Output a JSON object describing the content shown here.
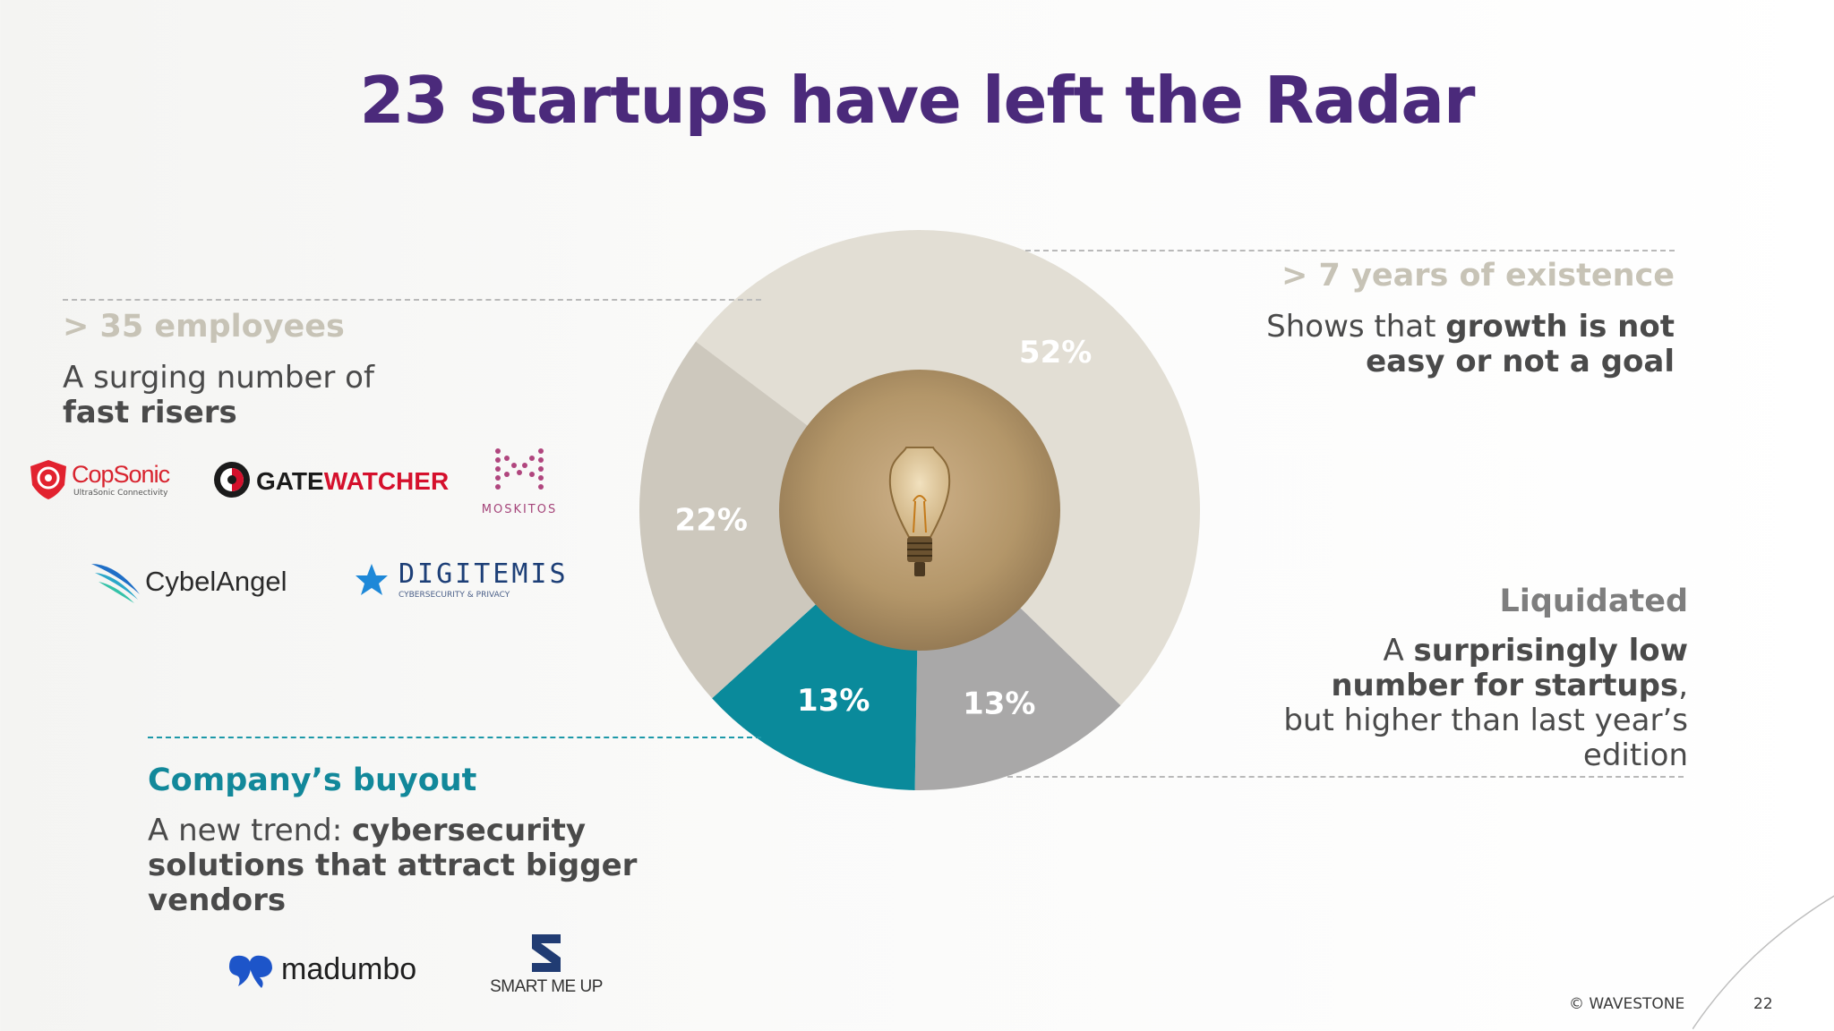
{
  "title": "23 startups have left the Radar",
  "sections": {
    "employees": {
      "heading": "> 35 employees",
      "text_plain": "A surging number of",
      "text_bold": "fast risers"
    },
    "existence": {
      "heading": "> 7 years of existence",
      "text_plain": "Shows that",
      "text_bold1": "growth is not",
      "text_bold2": "easy or not a goal"
    },
    "liquidated": {
      "heading": "Liquidated",
      "text_plain": "A",
      "text_bold1": "surprisingly low",
      "text_bold2": "number for startups",
      "text_plain2": ",",
      "text_plain3": "but higher than last year’s",
      "text_plain4": "edition"
    },
    "buyout": {
      "heading": "Company’s buyout",
      "text_plain": "A new trend:",
      "text_bold1": "cybersecurity",
      "text_bold2": "solutions that attract bigger",
      "text_bold3": "vendors"
    }
  },
  "logos": {
    "copsonic": {
      "name": "CopSonic",
      "tagline": "UltraSonic Connectivity"
    },
    "gatewatcher": {
      "name_part1": "GATE",
      "name_part2": "WATCHER"
    },
    "moskitos": {
      "name": "MOSKITOS"
    },
    "cybelangel": {
      "name": "CybelAngel"
    },
    "digitemis": {
      "name": "DIGITEMIS",
      "tagline": "CYBERSECURITY & PRIVACY"
    },
    "madumbo": {
      "name": "madumbo"
    },
    "smartmeup": {
      "name": "SMART ME UP"
    }
  },
  "chart_data": {
    "type": "pie",
    "title": "",
    "slices": [
      {
        "label": "52%",
        "value": 52,
        "color": "#e2ded4"
      },
      {
        "label": "13%",
        "value": 13,
        "color": "#a9a8a8"
      },
      {
        "label": "13%",
        "value": 13,
        "color": "#0a8a9b"
      },
      {
        "label": "22%",
        "value": 22,
        "color": "#cdc8bd"
      }
    ],
    "center_icon": "lightbulb-icon"
  },
  "colors": {
    "title": "#4b2a7b",
    "heading_gray": "#c7c3b6",
    "heading_dark": "#7e7e7e",
    "teal": "#12889a"
  },
  "footer": {
    "copyright": "© WAVESTONE",
    "page": "22"
  }
}
